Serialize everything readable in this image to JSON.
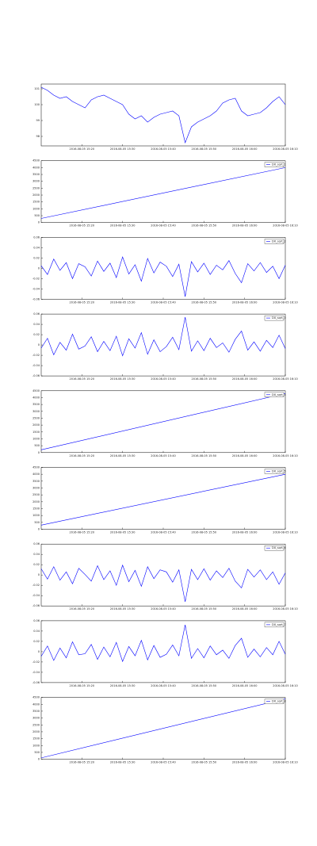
{
  "chart_data": [
    {
      "type": "line",
      "x": [
        0,
        1,
        2,
        3,
        4,
        5,
        6,
        7,
        8,
        9,
        10,
        11,
        12,
        13,
        14,
        15,
        16,
        17,
        18,
        19,
        20,
        21,
        22,
        23,
        24,
        25,
        26,
        27,
        28,
        29,
        30,
        31,
        32,
        33,
        34,
        35,
        36,
        37,
        38,
        39
      ],
      "xlim": [
        0,
        39
      ],
      "xticks": [
        {
          "value": 6.5,
          "label": "2016-08-05 15:20"
        },
        {
          "value": 13,
          "label": "2016-08-05 15:30"
        },
        {
          "value": 19.5,
          "label": "2016-08-05 15:40"
        },
        {
          "value": 26,
          "label": "2016-08-05 15:50"
        },
        {
          "value": 32.5,
          "label": "2016-08-05 16:00"
        },
        {
          "value": 39,
          "label": "2016-08-05 16:10"
        }
      ],
      "ylim": [
        97.4,
        101.3
      ],
      "yticks": [
        98,
        99,
        100,
        101
      ],
      "series": [
        {
          "color": "#0000ff",
          "values": [
            101.1,
            100.9,
            100.6,
            100.4,
            100.5,
            100.2,
            100.0,
            99.8,
            100.3,
            100.5,
            100.6,
            100.4,
            100.2,
            100.0,
            99.4,
            99.1,
            99.3,
            98.9,
            99.2,
            99.4,
            99.5,
            99.6,
            99.3,
            97.6,
            98.6,
            98.9,
            99.1,
            99.3,
            99.6,
            100.1,
            100.3,
            100.4,
            99.6,
            99.3,
            99.4,
            99.5,
            99.8,
            100.2,
            100.5,
            100.0
          ]
        }
      ]
    },
    {
      "type": "line",
      "x": [
        0,
        39
      ],
      "xlim": [
        0,
        39
      ],
      "xticks": [
        {
          "value": 6.5,
          "label": "2016-08-05 15:20"
        },
        {
          "value": 13,
          "label": "2016-08-05 15:30"
        },
        {
          "value": 19.5,
          "label": "2016-08-05 15:40"
        },
        {
          "value": 26,
          "label": "2016-08-05 15:50"
        },
        {
          "value": 32.5,
          "label": "2016-08-05 16:00"
        },
        {
          "value": 39,
          "label": "2016-08-05 16:10"
        }
      ],
      "ylim": [
        0,
        4500
      ],
      "yticks": [
        0,
        500,
        1000,
        1500,
        2000,
        2500,
        3000,
        3500,
        4000,
        4500
      ],
      "series": [
        {
          "name": "DX_sqrt_1",
          "color": "#0000ff",
          "values": [
            300,
            4000
          ]
        }
      ]
    },
    {
      "type": "line",
      "x": [
        0,
        1,
        2,
        3,
        4,
        5,
        6,
        7,
        8,
        9,
        10,
        11,
        12,
        13,
        14,
        15,
        16,
        17,
        18,
        19,
        20,
        21,
        22,
        23,
        24,
        25,
        26,
        27,
        28,
        29,
        30,
        31,
        32,
        33,
        34,
        35,
        36,
        37,
        38,
        39
      ],
      "xlim": [
        0,
        39
      ],
      "xticks": [
        {
          "value": 6.5,
          "label": "2016-08-05 15:20"
        },
        {
          "value": 13,
          "label": "2016-08-05 15:30"
        },
        {
          "value": 19.5,
          "label": "2016-08-05 15:40"
        },
        {
          "value": 26,
          "label": "2016-08-05 15:50"
        },
        {
          "value": 32.5,
          "label": "2016-08-05 16:00"
        },
        {
          "value": 39,
          "label": "2016-08-05 16:10"
        }
      ],
      "ylim": [
        -0.06,
        0.06
      ],
      "yticks": [
        -0.06,
        -0.04,
        -0.02,
        0,
        0.02,
        0.04,
        0.06
      ],
      "series": [
        {
          "name": "DX_sqrt_2",
          "color": "#0000ff",
          "values": [
            0.005,
            -0.012,
            0.018,
            -0.004,
            0.011,
            -0.02,
            0.009,
            0.003,
            -0.015,
            0.014,
            -0.006,
            0.01,
            -0.018,
            0.022,
            -0.011,
            0.007,
            -0.025,
            0.019,
            -0.009,
            0.012,
            0.004,
            -0.016,
            0.008,
            -0.055,
            0.013,
            -0.007,
            0.01,
            -0.012,
            0.006,
            -0.003,
            0.015,
            -0.01,
            -0.028,
            0.009,
            -0.005,
            0.011,
            -0.008,
            0.004,
            -0.02,
            0.006
          ]
        }
      ]
    },
    {
      "type": "line",
      "x": [
        0,
        1,
        2,
        3,
        4,
        5,
        6,
        7,
        8,
        9,
        10,
        11,
        12,
        13,
        14,
        15,
        16,
        17,
        18,
        19,
        20,
        21,
        22,
        23,
        24,
        25,
        26,
        27,
        28,
        29,
        30,
        31,
        32,
        33,
        34,
        35,
        36,
        37,
        38,
        39
      ],
      "xlim": [
        0,
        39
      ],
      "xticks": [
        {
          "value": 6.5,
          "label": "2016-08-05 15:20"
        },
        {
          "value": 13,
          "label": "2016-08-05 15:30"
        },
        {
          "value": 19.5,
          "label": "2016-08-05 15:40"
        },
        {
          "value": 26,
          "label": "2016-08-05 15:50"
        },
        {
          "value": 32.5,
          "label": "2016-08-05 16:00"
        },
        {
          "value": 39,
          "label": "2016-08-05 16:10"
        }
      ],
      "ylim": [
        -0.06,
        0.06
      ],
      "yticks": [
        -0.06,
        -0.04,
        -0.02,
        0,
        0.02,
        0.04,
        0.06
      ],
      "series": [
        {
          "name": "DX_sqrt_3",
          "color": "#0000ff",
          "values": [
            -0.006,
            0.013,
            -0.019,
            0.005,
            -0.01,
            0.021,
            -0.008,
            -0.002,
            0.016,
            -0.013,
            0.007,
            -0.011,
            0.017,
            -0.021,
            0.012,
            -0.006,
            0.024,
            -0.018,
            0.01,
            -0.013,
            -0.003,
            0.015,
            -0.009,
            0.054,
            -0.012,
            0.008,
            -0.011,
            0.013,
            -0.005,
            0.004,
            -0.014,
            0.011,
            0.027,
            -0.01,
            0.006,
            -0.012,
            0.009,
            -0.005,
            0.019,
            -0.007
          ]
        }
      ]
    },
    {
      "type": "line",
      "x": [
        0,
        39
      ],
      "xlim": [
        0,
        39
      ],
      "xticks": [
        {
          "value": 6.5,
          "label": "2016-08-05 15:20"
        },
        {
          "value": 13,
          "label": "2016-08-05 15:30"
        },
        {
          "value": 19.5,
          "label": "2016-08-05 15:40"
        },
        {
          "value": 26,
          "label": "2016-08-05 15:50"
        },
        {
          "value": 32.5,
          "label": "2016-08-05 16:00"
        },
        {
          "value": 39,
          "label": "2016-08-05 16:10"
        }
      ],
      "ylim": [
        0,
        4500
      ],
      "yticks": [
        0,
        500,
        1000,
        1500,
        2000,
        2500,
        3000,
        3500,
        4000,
        4500
      ],
      "series": [
        {
          "name": "DX_sqrt_4",
          "color": "#0000ff",
          "values": [
            200,
            4300
          ]
        }
      ]
    },
    {
      "type": "line",
      "x": [
        0,
        39
      ],
      "xlim": [
        0,
        39
      ],
      "xticks": [
        {
          "value": 6.5,
          "label": "2016-08-05 15:20"
        },
        {
          "value": 13,
          "label": "2016-08-05 15:30"
        },
        {
          "value": 19.5,
          "label": "2016-08-05 15:40"
        },
        {
          "value": 26,
          "label": "2016-08-05 15:50"
        },
        {
          "value": 32.5,
          "label": "2016-08-05 16:00"
        },
        {
          "value": 39,
          "label": "2016-08-05 16:10"
        }
      ],
      "ylim": [
        0,
        4500
      ],
      "yticks": [
        0,
        500,
        1000,
        1500,
        2000,
        2500,
        3000,
        3500,
        4000,
        4500
      ],
      "series": [
        {
          "name": "DX_sqrt_5",
          "color": "#0000ff",
          "values": [
            300,
            4000
          ]
        }
      ]
    },
    {
      "type": "line",
      "x": [
        0,
        1,
        2,
        3,
        4,
        5,
        6,
        7,
        8,
        9,
        10,
        11,
        12,
        13,
        14,
        15,
        16,
        17,
        18,
        19,
        20,
        21,
        22,
        23,
        24,
        25,
        26,
        27,
        28,
        29,
        30,
        31,
        32,
        33,
        34,
        35,
        36,
        37,
        38,
        39
      ],
      "xlim": [
        0,
        39
      ],
      "xticks": [
        {
          "value": 6.5,
          "label": "2016-08-05 15:20"
        },
        {
          "value": 13,
          "label": "2016-08-05 15:30"
        },
        {
          "value": 19.5,
          "label": "2016-08-05 15:40"
        },
        {
          "value": 26,
          "label": "2016-08-05 15:50"
        },
        {
          "value": 32.5,
          "label": "2016-08-05 16:00"
        },
        {
          "value": 39,
          "label": "2016-08-05 16:10"
        }
      ],
      "ylim": [
        -0.06,
        0.06
      ],
      "yticks": [
        -0.06,
        -0.04,
        -0.02,
        0,
        0.02,
        0.04,
        0.06
      ],
      "series": [
        {
          "name": "DX_sqrt_6",
          "color": "#0000ff",
          "values": [
            0.012,
            -0.008,
            0.016,
            -0.01,
            0.006,
            -0.017,
            0.013,
            0.001,
            -0.012,
            0.018,
            -0.009,
            0.008,
            -0.02,
            0.019,
            -0.013,
            0.009,
            -0.022,
            0.016,
            -0.007,
            0.01,
            0.006,
            -0.014,
            0.01,
            -0.052,
            0.011,
            -0.009,
            0.012,
            -0.01,
            0.008,
            -0.005,
            0.013,
            -0.012,
            -0.025,
            0.011,
            -0.004,
            0.01,
            -0.009,
            0.006,
            -0.018,
            0.004
          ]
        }
      ]
    },
    {
      "type": "line",
      "x": [
        0,
        1,
        2,
        3,
        4,
        5,
        6,
        7,
        8,
        9,
        10,
        11,
        12,
        13,
        14,
        15,
        16,
        17,
        18,
        19,
        20,
        21,
        22,
        23,
        24,
        25,
        26,
        27,
        28,
        29,
        30,
        31,
        32,
        33,
        34,
        35,
        36,
        37,
        38,
        39
      ],
      "xlim": [
        0,
        39
      ],
      "xticks": [
        {
          "value": 6.5,
          "label": "2016-08-05 15:20"
        },
        {
          "value": 13,
          "label": "2016-08-05 15:30"
        },
        {
          "value": 19.5,
          "label": "2016-08-05 15:40"
        },
        {
          "value": 26,
          "label": "2016-08-05 15:50"
        },
        {
          "value": 32.5,
          "label": "2016-08-05 16:00"
        },
        {
          "value": 39,
          "label": "2016-08-05 16:10"
        }
      ],
      "ylim": [
        -0.06,
        0.06
      ],
      "yticks": [
        -0.06,
        -0.04,
        -0.02,
        0,
        0.02,
        0.04,
        0.06
      ],
      "series": [
        {
          "name": "DX_sqrt_7",
          "color": "#0000ff",
          "values": [
            -0.009,
            0.011,
            -0.017,
            0.007,
            -0.012,
            0.019,
            -0.006,
            -0.004,
            0.014,
            -0.015,
            0.009,
            -0.01,
            0.018,
            -0.019,
            0.01,
            -0.008,
            0.022,
            -0.016,
            0.012,
            -0.011,
            -0.005,
            0.013,
            -0.008,
            0.052,
            -0.013,
            0.006,
            -0.012,
            0.011,
            -0.006,
            0.003,
            -0.013,
            0.012,
            0.026,
            -0.011,
            0.005,
            -0.01,
            0.008,
            -0.006,
            0.02,
            -0.005
          ]
        }
      ]
    },
    {
      "type": "line",
      "x": [
        0,
        39
      ],
      "xlim": [
        0,
        39
      ],
      "xticks": [
        {
          "value": 6.5,
          "label": "2016-08-05 15:20"
        },
        {
          "value": 13,
          "label": "2016-08-05 15:30"
        },
        {
          "value": 19.5,
          "label": "2016-08-05 15:40"
        },
        {
          "value": 26,
          "label": "2016-08-05 15:50"
        },
        {
          "value": 32.5,
          "label": "2016-08-05 16:00"
        },
        {
          "value": 39,
          "label": "2016-08-05 16:10"
        }
      ],
      "ylim": [
        0,
        4500
      ],
      "yticks": [
        0,
        500,
        1000,
        1500,
        2000,
        2500,
        3000,
        3500,
        4000,
        4500
      ],
      "series": [
        {
          "name": "DX_sqrt_8",
          "color": "#0000ff",
          "values": [
            100,
            4400
          ]
        }
      ]
    }
  ]
}
